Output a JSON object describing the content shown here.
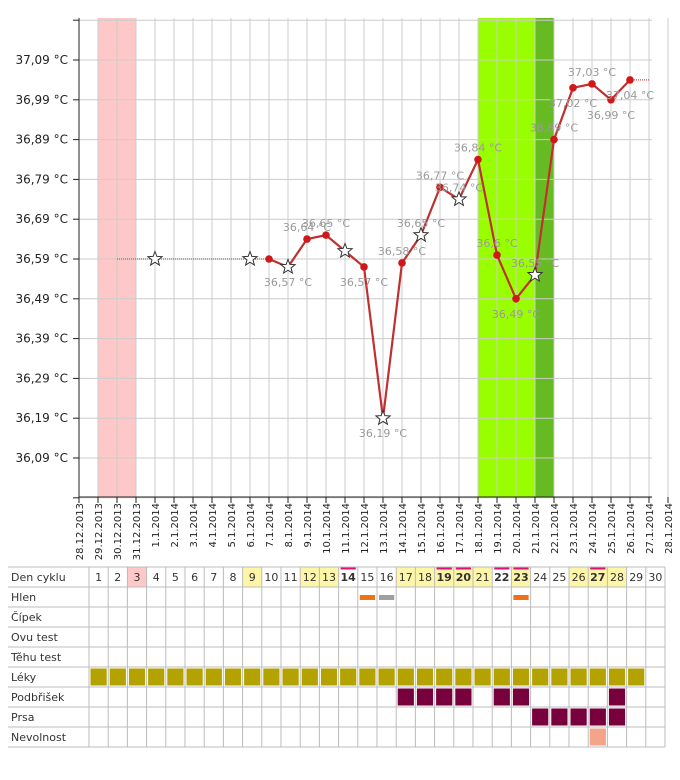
{
  "chart_data": {
    "type": "line",
    "unit": "°C",
    "yticks": [
      36.09,
      36.19,
      36.29,
      36.39,
      36.49,
      36.59,
      36.69,
      36.79,
      36.89,
      36.99,
      37.09
    ],
    "ytick_labels": [
      "36,09 °C",
      "36,19 °C",
      "36,29 °C",
      "36,39 °C",
      "36,49 °C",
      "36,59 °C",
      "36,69 °C",
      "36,79 °C",
      "36,89 °C",
      "36,99 °C",
      "37,09 °C"
    ],
    "ylim": [
      35.99,
      37.19
    ],
    "dates": [
      "28.12.2013",
      "29.12.2013",
      "30.12.2013",
      "31.12.2013",
      "1.1.2014",
      "2.1.2014",
      "3.1.2014",
      "4.1.2014",
      "5.1.2014",
      "6.1.2014",
      "7.1.2014",
      "8.1.2014",
      "9.1.2014",
      "10.1.2014",
      "11.1.2014",
      "12.1.2014",
      "13.1.2014",
      "14.1.2014",
      "15.1.2014",
      "16.1.2014",
      "17.1.2014",
      "18.1.2014",
      "19.1.2014",
      "20.1.2014",
      "21.1.2014",
      "22.1.2014",
      "23.1.2014",
      "24.1.2014",
      "25.1.2014",
      "26.1.2014",
      "27.1.2014",
      "28.1.2014"
    ],
    "period_band": [
      "29.12.2013",
      "30.12.2013"
    ],
    "fertile_band": [
      "18.1.2014",
      "21.1.2014"
    ],
    "peak_band": [
      "21.1.2014",
      "21.1.2014"
    ],
    "colors": {
      "line": "#c03030",
      "point": "#d01818",
      "period": "#ffc8c8",
      "fertile": "#99ff00",
      "peak": "#66bb22",
      "grid": "#cccccc"
    },
    "dotted_segments": [
      {
        "from": "30.12.2013",
        "to": "7.1.2014",
        "y": 36.59
      },
      {
        "from": "26.1.2014",
        "to": "27.1.2014",
        "y": 37.04
      }
    ],
    "points": [
      {
        "x": "1.1.2014",
        "y": 36.59,
        "marker": "star",
        "label": ""
      },
      {
        "x": "6.1.2014",
        "y": 36.59,
        "marker": "star",
        "label": ""
      },
      {
        "x": "7.1.2014",
        "y": 36.59,
        "marker": "dot",
        "label": ""
      },
      {
        "x": "8.1.2014",
        "y": 36.57,
        "marker": "star",
        "label": "36,57 °C",
        "label_pos": "below"
      },
      {
        "x": "9.1.2014",
        "y": 36.64,
        "marker": "dot",
        "label": "36,64 °C",
        "label_pos": "above"
      },
      {
        "x": "10.1.2014",
        "y": 36.65,
        "marker": "dot",
        "label": "36,65 °C",
        "label_pos": "above"
      },
      {
        "x": "11.1.2014",
        "y": 36.61,
        "marker": "star",
        "label": ""
      },
      {
        "x": "12.1.2014",
        "y": 36.57,
        "marker": "dot",
        "label": "36,57 °C",
        "label_pos": "below"
      },
      {
        "x": "13.1.2014",
        "y": 36.19,
        "marker": "star",
        "label": "36,19 °C",
        "label_pos": "below"
      },
      {
        "x": "14.1.2014",
        "y": 36.58,
        "marker": "dot",
        "label": "36,58 °C",
        "label_pos": "above"
      },
      {
        "x": "15.1.2014",
        "y": 36.65,
        "marker": "star",
        "label": "36,65 °C",
        "label_pos": "above"
      },
      {
        "x": "16.1.2014",
        "y": 36.77,
        "marker": "dot",
        "label": "36,77 °C",
        "label_pos": "above"
      },
      {
        "x": "17.1.2014",
        "y": 36.74,
        "marker": "star",
        "label": "36,74 °C",
        "label_pos": "above"
      },
      {
        "x": "18.1.2014",
        "y": 36.84,
        "marker": "dot",
        "label": "36,84 °C",
        "label_pos": "above"
      },
      {
        "x": "19.1.2014",
        "y": 36.6,
        "marker": "dot",
        "label": "36,6 °C",
        "label_pos": "above"
      },
      {
        "x": "20.1.2014",
        "y": 36.49,
        "marker": "dot",
        "label": "36,49 °C",
        "label_pos": "below"
      },
      {
        "x": "21.1.2014",
        "y": 36.55,
        "marker": "star",
        "label": "36,55 °C",
        "label_pos": "above"
      },
      {
        "x": "22.1.2014",
        "y": 36.89,
        "marker": "dot",
        "label": "36,89 °C",
        "label_pos": "above"
      },
      {
        "x": "23.1.2014",
        "y": 37.02,
        "marker": "dot",
        "label": "37,02 °C",
        "label_pos": "below"
      },
      {
        "x": "24.1.2014",
        "y": 37.03,
        "marker": "dot",
        "label": "37,03 °C",
        "label_pos": "above"
      },
      {
        "x": "25.1.2014",
        "y": 36.99,
        "marker": "dot",
        "label": "36,99 °C",
        "label_pos": "below"
      },
      {
        "x": "26.1.2014",
        "y": 37.04,
        "marker": "dot",
        "label": "37,04 °C",
        "label_pos": "below"
      }
    ]
  },
  "cycle_table": {
    "days": [
      1,
      2,
      3,
      4,
      5,
      6,
      7,
      8,
      9,
      10,
      11,
      12,
      13,
      14,
      15,
      16,
      17,
      18,
      19,
      20,
      21,
      22,
      23,
      24,
      25,
      26,
      27,
      28,
      29,
      30
    ],
    "day_backgrounds": {
      "3": "#ffc8c8",
      "9": "#fdf5a8",
      "12": "#fdf5a8",
      "13": "#fdf5a8",
      "17": "#fdf5a8",
      "18": "#fdf5a8",
      "19": "#fdf5a8",
      "20": "#fdf5a8",
      "21": "#fdf5a8",
      "23": "#fdf5a8",
      "26": "#fdf5a8",
      "27": "#fdf5a8",
      "28": "#fdf5a8"
    },
    "bold_days": [
      14,
      19,
      20,
      22,
      23,
      27
    ],
    "marked_days": [
      14,
      19,
      20,
      22,
      23,
      27
    ],
    "mark_color": "#e0107a",
    "rows": [
      {
        "label": "Den cyklu"
      },
      {
        "label": "Hlen",
        "cells": {
          "15": "orange",
          "16": "gray",
          "23": "orange"
        }
      },
      {
        "label": "Čípek"
      },
      {
        "label": "Ovu test"
      },
      {
        "label": "Těhu test"
      },
      {
        "label": "Léky",
        "cells": {
          "1": "olive",
          "2": "olive",
          "3": "olive",
          "4": "olive",
          "5": "olive",
          "6": "olive",
          "7": "olive",
          "8": "olive",
          "9": "olive",
          "10": "olive",
          "11": "olive",
          "12": "olive",
          "13": "olive",
          "14": "olive",
          "15": "olive",
          "16": "olive",
          "17": "olive",
          "18": "olive",
          "19": "olive",
          "20": "olive",
          "21": "olive",
          "22": "olive",
          "23": "olive",
          "24": "olive",
          "25": "olive",
          "26": "olive",
          "27": "olive",
          "28": "olive",
          "29": "olive"
        }
      },
      {
        "label": "Podbřišek",
        "cells": {
          "17": "maroon",
          "18": "maroon",
          "19": "maroon",
          "20": "maroon",
          "22": "maroon",
          "23": "maroon",
          "28": "maroon"
        }
      },
      {
        "label": "Prsa",
        "cells": {
          "24": "maroon",
          "25": "maroon",
          "26": "maroon",
          "27": "maroon",
          "28": "maroon"
        }
      },
      {
        "label": "Nevolnost",
        "cells": {
          "27": "salmon"
        }
      }
    ],
    "cell_colors": {
      "orange": "#f07018",
      "gray": "#a0a0a0",
      "olive": "#b4a200",
      "maroon": "#78003c",
      "salmon": "#f4a488"
    }
  }
}
